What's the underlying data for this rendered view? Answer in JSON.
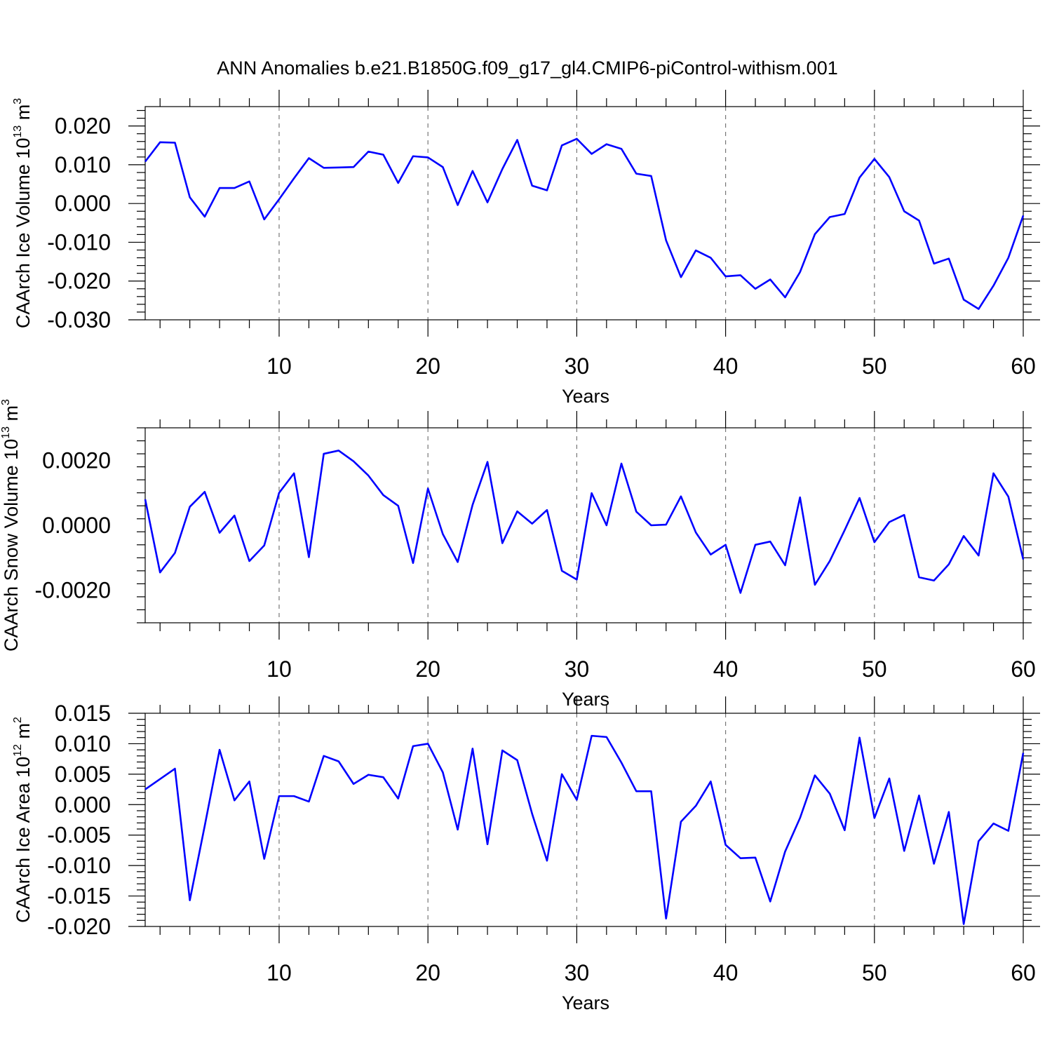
{
  "title": "ANN Anomalies b.e21.B1850G.f09_g17_gl4.CMIP6-piControl-withism.001",
  "colors": {
    "line": "#0000ff",
    "axes": "#000000",
    "grid": "#777777"
  },
  "chart_data": [
    {
      "type": "line",
      "ylabel": {
        "text": "CAArch Ice Volume 10",
        "sup": "13",
        "unit": " m",
        "unit_sup": "3"
      },
      "xlabel": "Years",
      "xlim": [
        1,
        60
      ],
      "ylim": [
        -0.03,
        0.025
      ],
      "xticks": [
        10,
        20,
        30,
        40,
        50,
        60
      ],
      "xtick_labels": [
        "10",
        "20",
        "30",
        "40",
        "50",
        "60"
      ],
      "yticks": [
        -0.03,
        -0.02,
        -0.01,
        0.0,
        0.01,
        0.02
      ],
      "ytick_labels": [
        "-0.030",
        "-0.020",
        "-0.010",
        "0.000",
        "0.010",
        "0.020"
      ],
      "grid": "vertical dashed at major x ticks",
      "series": [
        {
          "name": "CAArch Ice Volume",
          "x": [
            1,
            2,
            3,
            4,
            5,
            6,
            7,
            8,
            9,
            10,
            11,
            12,
            13,
            14,
            15,
            16,
            17,
            18,
            19,
            20,
            21,
            22,
            23,
            24,
            25,
            26,
            27,
            28,
            29,
            30,
            31,
            32,
            33,
            34,
            35,
            36,
            37,
            38,
            39,
            40,
            41,
            42,
            43,
            44,
            45,
            46,
            47,
            48,
            49,
            50,
            51,
            52,
            53,
            54,
            55,
            56,
            57,
            58,
            59,
            60
          ],
          "values": [
            0.0108,
            0.0158,
            0.0157,
            0.0016,
            -0.0034,
            0.004,
            0.004,
            0.0057,
            -0.0041,
            0.0011,
            0.0065,
            0.0117,
            0.0092,
            0.0093,
            0.0094,
            0.0134,
            0.0126,
            0.0053,
            0.0122,
            0.0119,
            0.0094,
            -0.0004,
            0.0084,
            0.0003,
            0.0089,
            0.0164,
            0.0046,
            0.0034,
            0.015,
            0.0167,
            0.0128,
            0.0153,
            0.0141,
            0.0077,
            0.0071,
            -0.0095,
            -0.019,
            -0.0121,
            -0.014,
            -0.0188,
            -0.0185,
            -0.022,
            -0.0196,
            -0.0242,
            -0.0177,
            -0.0079,
            -0.0035,
            -0.0027,
            0.0067,
            0.0115,
            0.0068,
            -0.002,
            -0.0044,
            -0.0155,
            -0.0142,
            -0.0248,
            -0.0272,
            -0.0212,
            -0.014,
            -0.0031
          ]
        }
      ]
    },
    {
      "type": "line",
      "ylabel": {
        "text": "CAArch Snow Volume 10",
        "sup": "13",
        "unit": " m",
        "unit_sup": "3"
      },
      "xlabel": "Years",
      "xlim": [
        1,
        60
      ],
      "ylim": [
        -0.003,
        0.003
      ],
      "xticks": [
        10,
        20,
        30,
        40,
        50,
        60
      ],
      "xtick_labels": [
        "10",
        "20",
        "30",
        "40",
        "50",
        "60"
      ],
      "yticks": [
        -0.002,
        0.0,
        0.002
      ],
      "ytick_labels": [
        "-0.0020",
        "0.0000",
        "0.0020"
      ],
      "grid": "vertical dashed at major x ticks",
      "series": [
        {
          "name": "CAArch Snow Volume",
          "x": [
            1,
            2,
            3,
            4,
            5,
            6,
            7,
            8,
            9,
            10,
            11,
            12,
            13,
            14,
            15,
            16,
            17,
            18,
            19,
            20,
            21,
            22,
            23,
            24,
            25,
            26,
            27,
            28,
            29,
            30,
            31,
            32,
            33,
            34,
            35,
            36,
            37,
            38,
            39,
            40,
            41,
            42,
            43,
            44,
            45,
            46,
            47,
            48,
            49,
            50,
            51,
            52,
            53,
            54,
            55,
            56,
            57,
            58,
            59,
            60
          ],
          "values": [
            0.0008,
            -0.00145,
            -0.00085,
            0.00057,
            0.00103,
            -0.00023,
            0.0003,
            -0.0011,
            -0.00062,
            0.001,
            0.0016,
            -0.00098,
            0.0022,
            0.0023,
            0.00197,
            0.00153,
            0.00093,
            0.0006,
            -0.00116,
            0.00113,
            -0.00027,
            -0.00113,
            0.00063,
            0.00195,
            -0.00055,
            0.00043,
            5e-05,
            0.00047,
            -0.0014,
            -0.00167,
            0.00099,
            0.0,
            0.0019,
            0.00042,
            0.0,
            2e-05,
            0.00089,
            -0.00022,
            -0.0009,
            -0.0006,
            -0.00208,
            -0.0006,
            -0.0005,
            -0.00123,
            0.00086,
            -0.00183,
            -0.0011,
            -0.00015,
            0.00084,
            -0.00052,
            0.0001,
            0.00032,
            -0.0016,
            -0.0017,
            -0.0012,
            -0.00033,
            -0.00093,
            0.0016,
            0.00088,
            -0.00105
          ]
        }
      ]
    },
    {
      "type": "line",
      "ylabel": {
        "text": "CAArch Ice Area 10",
        "sup": "12",
        "unit": " m",
        "unit_sup": "2"
      },
      "xlabel": "Years",
      "xlim": [
        1,
        60
      ],
      "ylim": [
        -0.02,
        0.015
      ],
      "xticks": [
        10,
        20,
        30,
        40,
        50,
        60
      ],
      "xtick_labels": [
        "10",
        "20",
        "30",
        "40",
        "50",
        "60"
      ],
      "yticks": [
        -0.02,
        -0.015,
        -0.01,
        -0.005,
        0.0,
        0.005,
        0.01,
        0.015
      ],
      "ytick_labels": [
        "-0.020",
        "-0.015",
        "-0.010",
        "-0.005",
        "0.000",
        "0.005",
        "0.010",
        "0.015"
      ],
      "grid": "vertical dashed at major x ticks",
      "series": [
        {
          "name": "CAArch Ice Area",
          "x": [
            1,
            2,
            3,
            4,
            5,
            6,
            7,
            8,
            9,
            10,
            11,
            12,
            13,
            14,
            15,
            16,
            17,
            18,
            19,
            20,
            21,
            22,
            23,
            24,
            25,
            26,
            27,
            28,
            29,
            30,
            31,
            32,
            33,
            34,
            35,
            36,
            37,
            38,
            39,
            40,
            41,
            42,
            43,
            44,
            45,
            46,
            47,
            48,
            49,
            50,
            51,
            52,
            53,
            54,
            55,
            56,
            57,
            58,
            59,
            60
          ],
          "values": [
            0.0025,
            0.0042,
            0.0059,
            -0.0157,
            -0.0035,
            0.009,
            0.0007,
            0.0038,
            -0.0089,
            0.0014,
            0.0014,
            0.0005,
            0.008,
            0.0071,
            0.0034,
            0.0049,
            0.0045,
            0.001,
            0.0096,
            0.01,
            0.0053,
            -0.0041,
            0.0092,
            -0.0065,
            0.0089,
            0.0073,
            -0.0015,
            -0.0092,
            0.005,
            0.0008,
            0.0113,
            0.0111,
            0.0069,
            0.0022,
            0.0022,
            -0.0187,
            -0.0028,
            -0.0002,
            0.0038,
            -0.0066,
            -0.0088,
            -0.0087,
            -0.0159,
            -0.0077,
            -0.0022,
            0.0048,
            0.0018,
            -0.0042,
            0.011,
            -0.0022,
            0.0043,
            -0.0076,
            0.0015,
            -0.0097,
            -0.0012,
            -0.0196,
            -0.006,
            -0.0031,
            -0.0043,
            0.0085
          ]
        }
      ]
    }
  ]
}
